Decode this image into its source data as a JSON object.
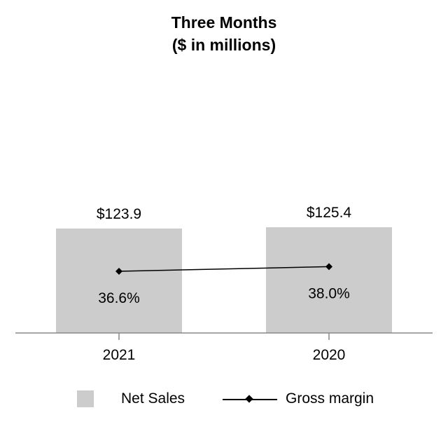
{
  "chart_data": {
    "type": "bar",
    "title": "Three Months",
    "subtitle": "($ in millions)",
    "categories": [
      "2021",
      "2020"
    ],
    "series": [
      {
        "name": "Net Sales",
        "type": "bar",
        "values": [
          123.9,
          125.4
        ],
        "labels": [
          "$123.9",
          "$125.4"
        ],
        "color": "#cccccc"
      },
      {
        "name": "Gross margin",
        "type": "line",
        "values": [
          36.6,
          38.0
        ],
        "labels": [
          "36.6%",
          "38.0%"
        ],
        "color": "#000000"
      }
    ],
    "legend": "bottom",
    "grid": false
  }
}
